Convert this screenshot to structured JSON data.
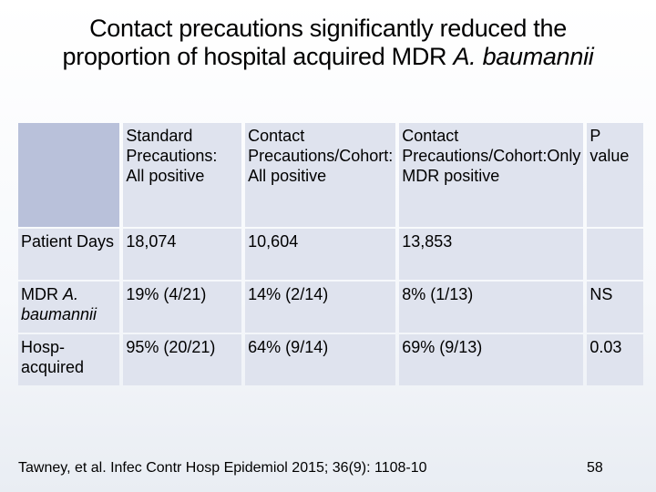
{
  "slide": {
    "title_part1": "Contact precautions significantly reduced the proportion of hospital acquired MDR",
    "title_genus": "A. baumannii",
    "columns": [
      "",
      "Standard Precautions: All positive",
      "Contact Precautions/Cohort: All positive",
      "Contact Precautions/Cohort:Only MDR positive",
      "P value"
    ],
    "rows": [
      {
        "label": "Patient Days",
        "label_italic": false,
        "values": [
          "18,074",
          "10,604",
          "13,853",
          ""
        ]
      },
      {
        "label": "MDR A. baumannii",
        "label_italic": true,
        "values": [
          "19% (4/21)",
          "14% (2/14)",
          "8% (1/13)",
          "NS"
        ]
      },
      {
        "label": "Hosp-acquired",
        "label_italic": false,
        "values": [
          "95% (20/21)",
          "64% (9/14)",
          "69% (9/13)",
          "0.03"
        ]
      }
    ],
    "citation": "Tawney, et al.  Infec Contr Hosp Epidemiol 2015; 36(9): 1108-10",
    "page_number": "58"
  },
  "colors": {
    "cell_background": "#dfe3ee",
    "corner_cell": "#b9c1da",
    "background_gradient_end": "#e9edf3"
  }
}
